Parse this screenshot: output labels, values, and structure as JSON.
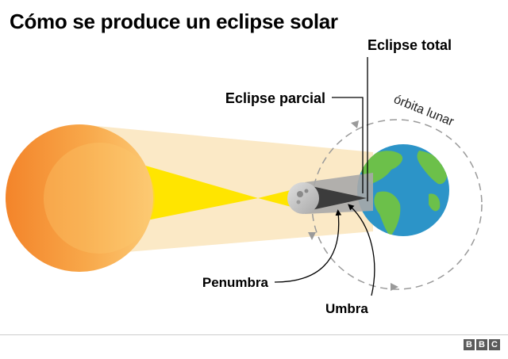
{
  "title": "Cómo se produce un eclipse solar",
  "labels": {
    "total_eclipse": "Eclipse total",
    "partial_eclipse": "Eclipse parcial",
    "lunar_orbit": "órbita lunar",
    "penumbra": "Penumbra",
    "umbra": "Umbra"
  },
  "brand": {
    "b1": "B",
    "b2": "B",
    "b3": "C"
  },
  "colors": {
    "sun": "#f7a64a",
    "ray_light": "#fbe9c6",
    "ray_yellow": "#ffe500",
    "ocean": "#2c94c8",
    "land": "#6cc04a",
    "moon": "#c8c8c8",
    "shadow": "#555555"
  }
}
